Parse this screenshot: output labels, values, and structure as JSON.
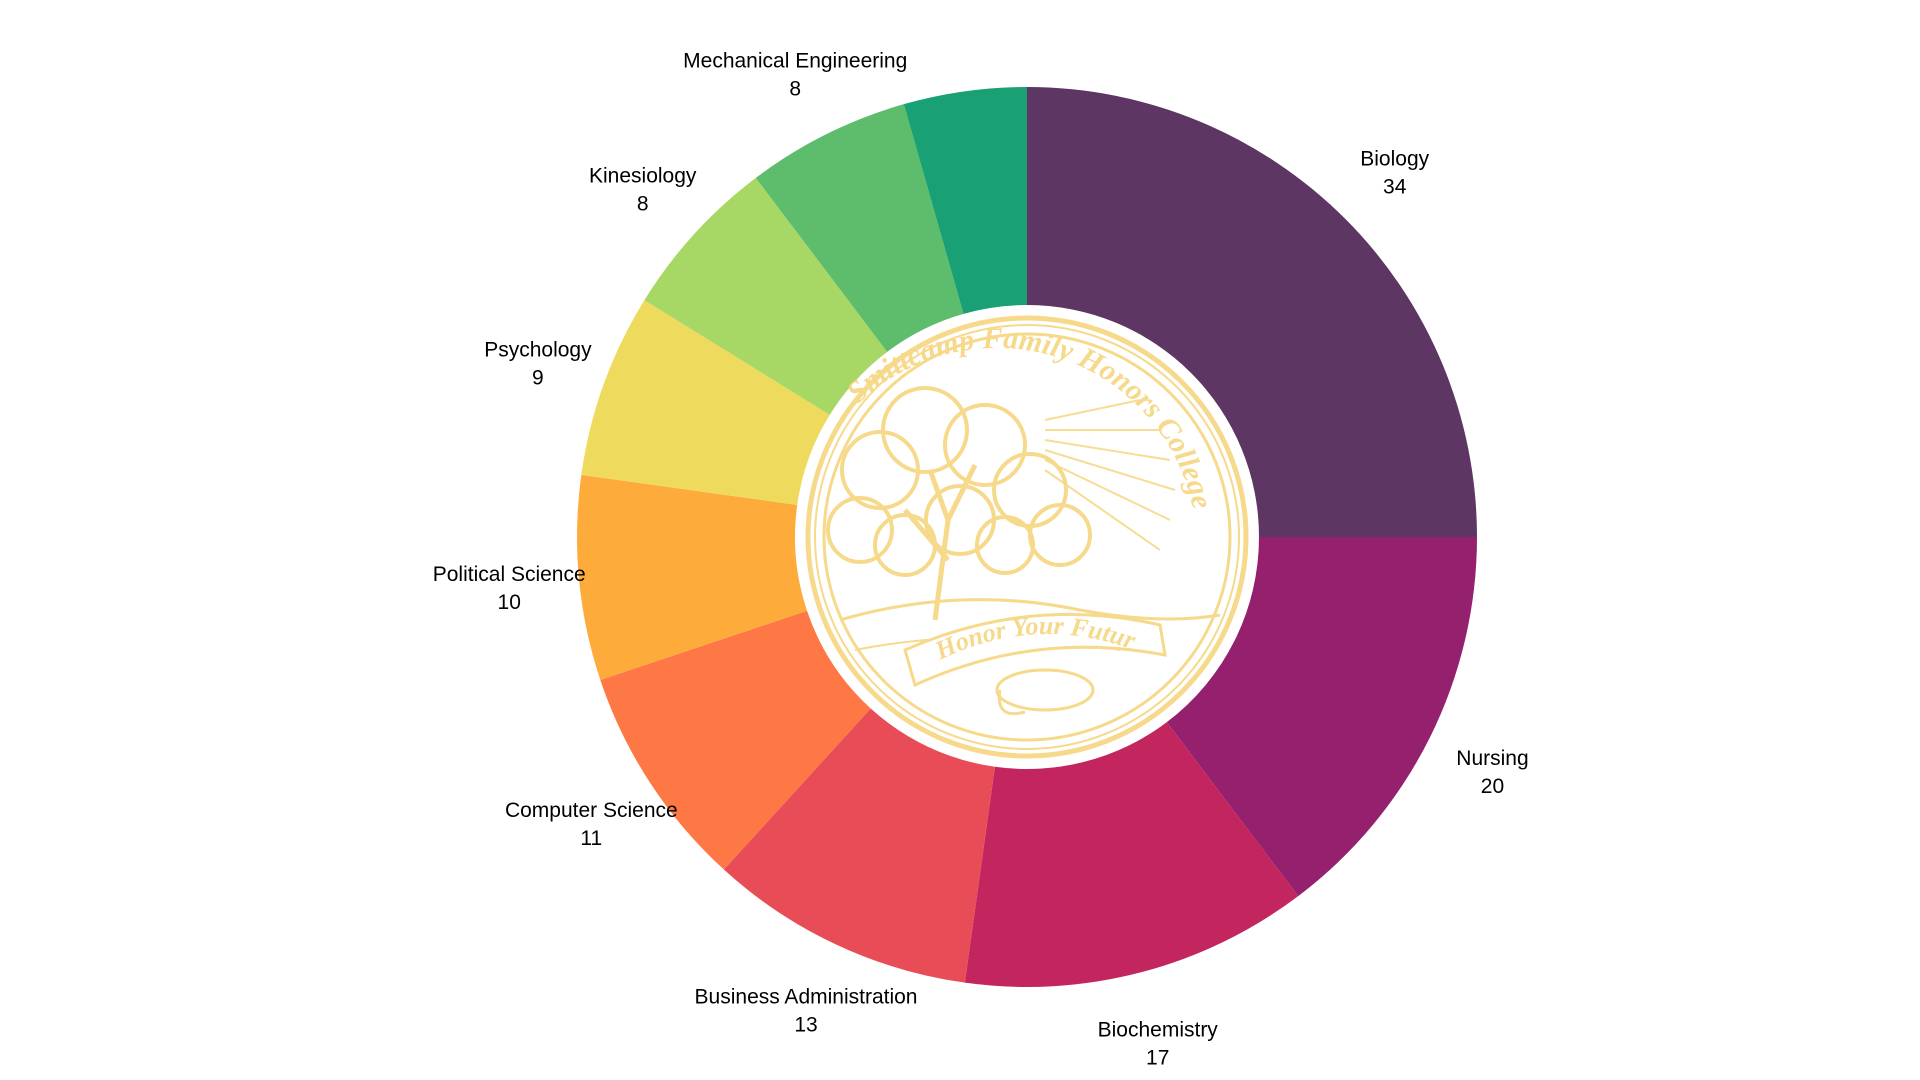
{
  "chart_data": {
    "type": "pie",
    "donut": true,
    "start_angle_deg": 0,
    "direction": "clockwise",
    "legend": "none",
    "slices": [
      {
        "label": "Biology",
        "value": 34,
        "color": "#5e3663"
      },
      {
        "label": "Nursing",
        "value": 20,
        "color": "#95206e"
      },
      {
        "label": "Biochemistry",
        "value": 17,
        "color": "#c3265f"
      },
      {
        "label": "Business Administration",
        "value": 13,
        "color": "#e84d57"
      },
      {
        "label": "Computer Science",
        "value": 11,
        "color": "#fe7845"
      },
      {
        "label": "Political Science",
        "value": 10,
        "color": "#fdac3c"
      },
      {
        "label": "Psychology",
        "value": 9,
        "color": "#eedb5e"
      },
      {
        "label": "Kinesiology",
        "value": 8,
        "color": "#a7d764"
      },
      {
        "label": "Mechanical Engineering",
        "value": 8,
        "color": "#5dbd6d"
      },
      {
        "label": "",
        "value": 6,
        "color": "#19a075"
      }
    ]
  },
  "seal": {
    "top_text": "Smittcamp Family Honors College",
    "banner_text": "Honor Your Future",
    "color": "#f6d98a"
  }
}
